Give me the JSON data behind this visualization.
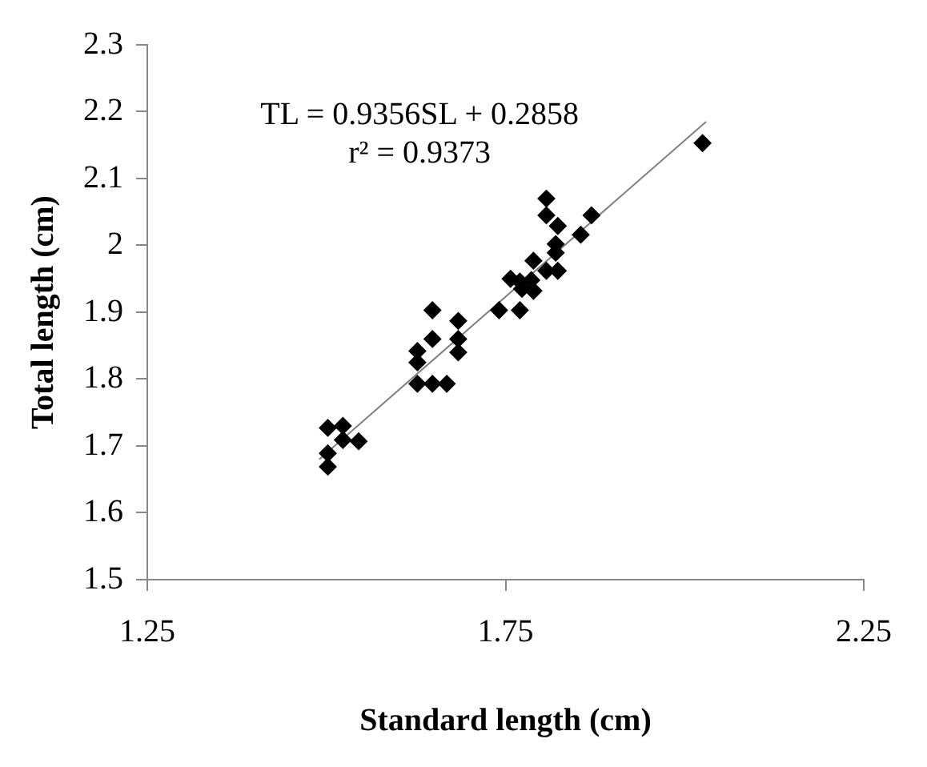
{
  "chart_data": {
    "type": "scatter",
    "xlabel": "Standard length (cm)",
    "ylabel": "Total length (cm)",
    "annotations": [
      "TL = 0.9356SL + 0.2858",
      "r² = 0.9373"
    ],
    "xlim": [
      1.25,
      2.25
    ],
    "xticks": [
      1.25,
      1.75,
      2.25
    ],
    "ylim": [
      1.5,
      2.3
    ],
    "yticks": [
      1.5,
      1.6,
      1.7,
      1.8,
      1.9,
      2,
      2.1,
      2.2,
      2.3
    ],
    "grid": false,
    "legend": false,
    "marker": "diamond",
    "series": [
      {
        "color": "#000000",
        "x": [
          1.807,
          1.807,
          1.823,
          1.87,
          1.855,
          1.82,
          1.82,
          1.789,
          1.807,
          1.823,
          1.757,
          1.77,
          1.786,
          1.773,
          1.789,
          1.741,
          1.77,
          1.648,
          1.684,
          1.648,
          1.684,
          1.684,
          1.627,
          1.627,
          1.627,
          1.648,
          1.668,
          1.502,
          1.523,
          1.523,
          1.545,
          1.502,
          1.502,
          2.025
        ],
        "values": [
          2.07,
          2.045,
          2.029,
          2.045,
          2.016,
          2.002,
          1.989,
          1.977,
          1.962,
          1.962,
          1.95,
          1.946,
          1.948,
          1.935,
          1.932,
          1.903,
          1.903,
          1.903,
          1.887,
          1.86,
          1.86,
          1.84,
          1.842,
          1.825,
          1.793,
          1.793,
          1.793,
          1.727,
          1.73,
          1.709,
          1.707,
          1.689,
          1.669,
          2.153
        ]
      },
      {
        "type": "line",
        "color": "#808080",
        "marker": "none",
        "x": [
          1.49,
          2.03
        ],
        "values": [
          1.68,
          2.185
        ]
      }
    ]
  }
}
